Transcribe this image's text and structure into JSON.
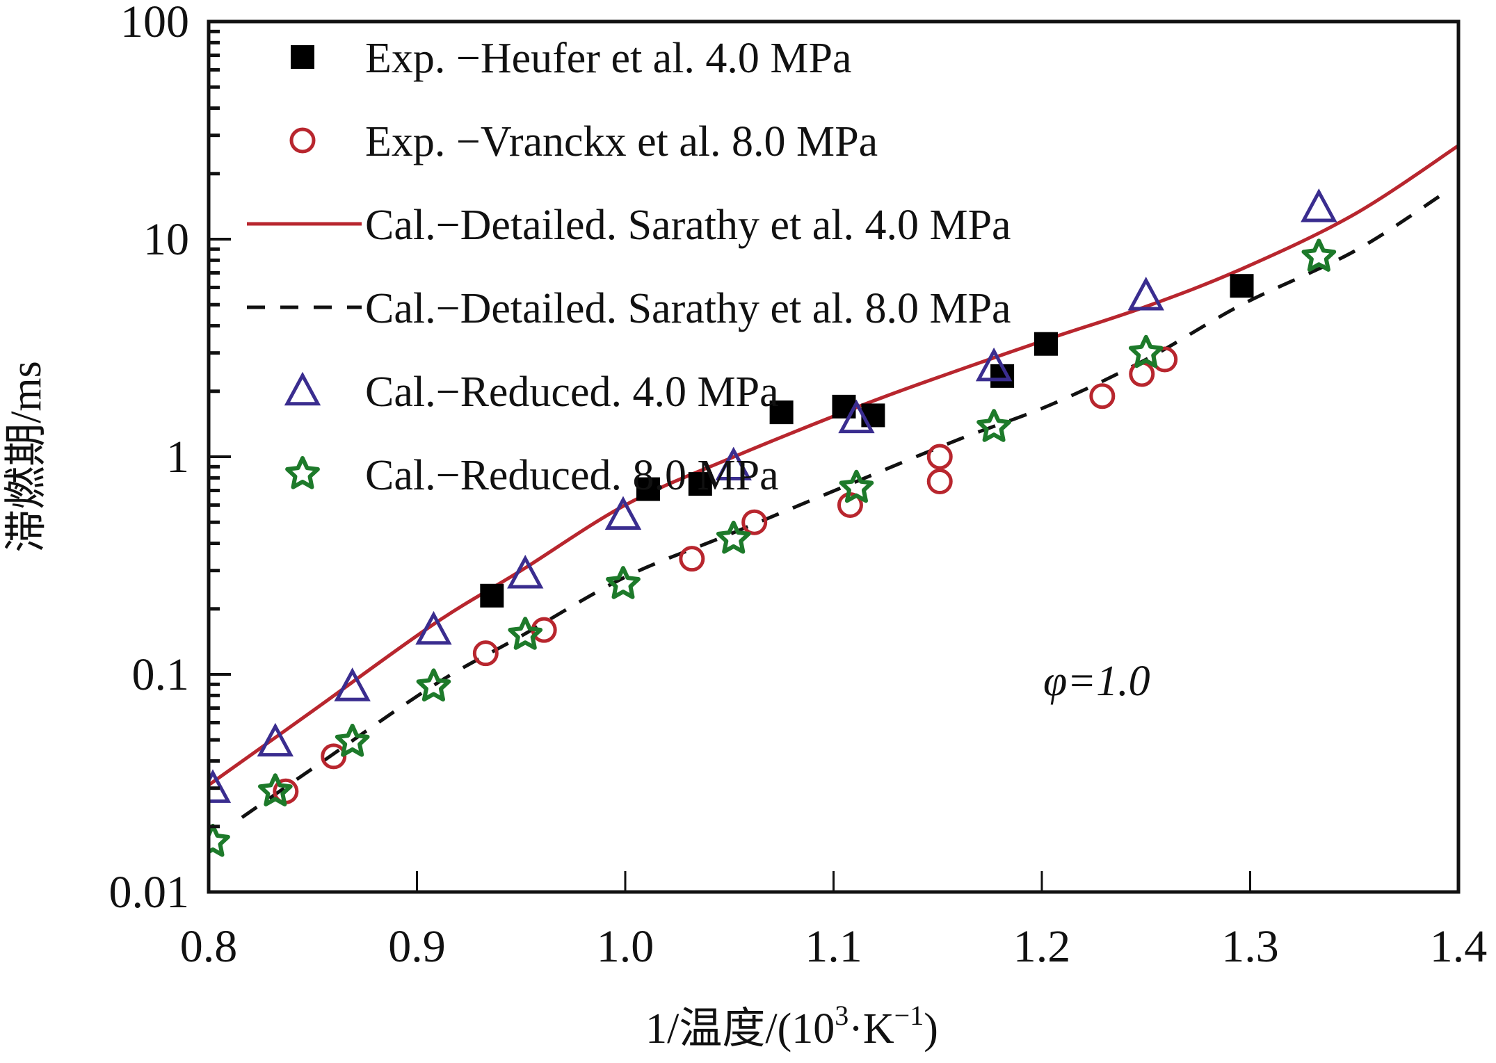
{
  "chart_data": {
    "type": "scatter",
    "title": "",
    "xlabel": "1/温度/(10³·K⁻¹)",
    "xlabel_parts": {
      "main": "1/温度/(10",
      "sup1": "3",
      "mid": "·K",
      "sup2": "−1",
      "end": ")"
    },
    "ylabel": "滞燃期/ms",
    "xlim": [
      0.8,
      1.4
    ],
    "ylim": [
      0.01,
      100
    ],
    "yscale": "log",
    "xticks": [
      0.8,
      0.9,
      1.0,
      1.1,
      1.2,
      1.3,
      1.4
    ],
    "xtick_labels": [
      "0.8",
      "0.9",
      "1.0",
      "1.1",
      "1.2",
      "1.3",
      "1.4"
    ],
    "yticks": [
      0.01,
      0.1,
      1,
      10,
      100
    ],
    "ytick_labels": [
      "0.01",
      "0.1",
      "1",
      "10",
      "100"
    ],
    "grid": false,
    "legend_position": "top-left",
    "annotation": "φ=1.0",
    "series": [
      {
        "name": "Exp. −Heufer et al. 4.0 MPa",
        "kind": "marker",
        "marker": "square-filled",
        "color": "#000000",
        "x": [
          0.936,
          1.011,
          1.036,
          1.075,
          1.105,
          1.119,
          1.181,
          1.202,
          1.296
        ],
        "y": [
          0.23,
          0.71,
          0.75,
          1.6,
          1.7,
          1.55,
          2.35,
          3.3,
          6.1
        ]
      },
      {
        "name": "Exp. −Vranckx et al. 8.0 MPa",
        "kind": "marker",
        "marker": "circle-open",
        "color": "#b8262e",
        "x": [
          0.837,
          0.86,
          0.933,
          0.961,
          1.032,
          1.062,
          1.108,
          1.151,
          1.151,
          1.229,
          1.248,
          1.259
        ],
        "y": [
          0.029,
          0.042,
          0.125,
          0.16,
          0.34,
          0.5,
          0.6,
          1.0,
          0.77,
          1.9,
          2.4,
          2.8
        ]
      },
      {
        "name": "Cal.−Detailed. Sarathy et al. 4.0 MPa",
        "kind": "line",
        "style": "solid",
        "color": "#b8262e",
        "x": [
          0.8,
          0.85,
          0.908,
          0.95,
          1.0,
          1.05,
          1.114,
          1.16,
          1.204,
          1.25,
          1.296,
          1.35,
          1.4
        ],
        "y": [
          0.031,
          0.068,
          0.17,
          0.3,
          0.6,
          0.98,
          1.73,
          2.5,
          3.5,
          4.9,
          7.3,
          13.0,
          26.9
        ]
      },
      {
        "name": "Cal.−Detailed. Sarathy et al. 8.0 MPa",
        "kind": "line",
        "style": "dashed",
        "color": "#111111",
        "x": [
          0.816,
          0.85,
          0.908,
          0.95,
          1.0,
          1.05,
          1.111,
          1.16,
          1.204,
          1.25,
          1.296,
          1.35,
          1.392
        ],
        "y": [
          0.022,
          0.037,
          0.089,
          0.15,
          0.28,
          0.44,
          0.77,
          1.2,
          1.73,
          2.8,
          5.0,
          8.8,
          16.0
        ]
      },
      {
        "name": "Cal.−Reduced. 4.0 MPa",
        "kind": "marker",
        "marker": "triangle-open",
        "color": "#3a2d8f",
        "x": [
          0.802,
          0.832,
          0.869,
          0.908,
          0.952,
          0.999,
          1.052,
          1.111,
          1.177,
          1.25,
          1.333
        ],
        "y": [
          0.03,
          0.049,
          0.088,
          0.16,
          0.29,
          0.54,
          0.91,
          1.5,
          2.6,
          5.5,
          14.0
        ]
      },
      {
        "name": "Cal.−Reduced. 8.0 MPa",
        "kind": "marker",
        "marker": "star-open",
        "color": "#1d7a2a",
        "x": [
          0.802,
          0.832,
          0.869,
          0.908,
          0.952,
          0.999,
          1.052,
          1.111,
          1.177,
          1.25,
          1.333
        ],
        "y": [
          0.017,
          0.029,
          0.049,
          0.088,
          0.152,
          0.26,
          0.42,
          0.72,
          1.37,
          3.0,
          8.3
        ]
      }
    ]
  }
}
